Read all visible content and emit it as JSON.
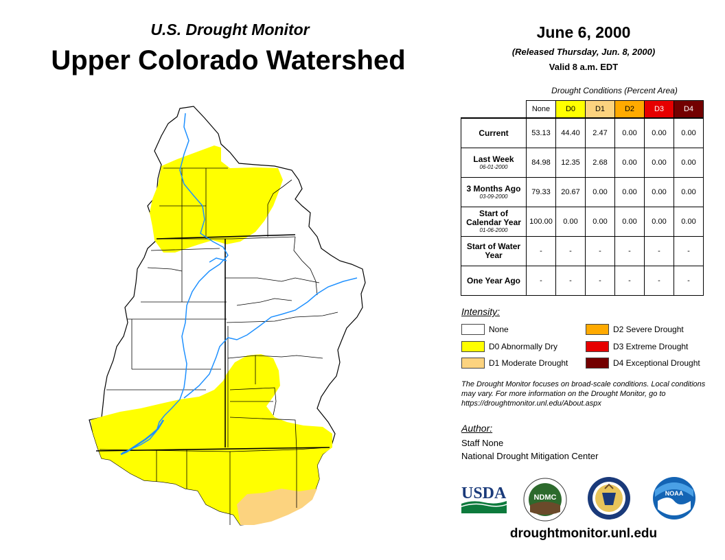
{
  "header": {
    "subtitle": "U.S. Drought Monitor",
    "title": "Upper Colorado Watershed",
    "date": "June 6, 2000",
    "released": "(Released Thursday, Jun. 8, 2000)",
    "valid": "Valid 8 a.m. EDT"
  },
  "table": {
    "caption": "Drought Conditions (Percent Area)",
    "columns": [
      "None",
      "D0",
      "D1",
      "D2",
      "D3",
      "D4"
    ],
    "column_colors": [
      "#ffffff",
      "#ffff00",
      "#fcd37f",
      "#ffaa00",
      "#e60000",
      "#730000"
    ],
    "rows": [
      {
        "label": "Current",
        "sub": "",
        "values": [
          "53.13",
          "44.40",
          "2.47",
          "0.00",
          "0.00",
          "0.00"
        ]
      },
      {
        "label": "Last Week",
        "sub": "06-01-2000",
        "values": [
          "84.98",
          "12.35",
          "2.68",
          "0.00",
          "0.00",
          "0.00"
        ]
      },
      {
        "label": "3 Months Ago",
        "sub": "03-09-2000",
        "values": [
          "79.33",
          "20.67",
          "0.00",
          "0.00",
          "0.00",
          "0.00"
        ]
      },
      {
        "label": "Start of Calendar Year",
        "sub": "01-06-2000",
        "values": [
          "100.00",
          "0.00",
          "0.00",
          "0.00",
          "0.00",
          "0.00"
        ]
      },
      {
        "label": "Start of Water Year",
        "sub": "",
        "values": [
          "-",
          "-",
          "-",
          "-",
          "-",
          "-"
        ]
      },
      {
        "label": "One Year Ago",
        "sub": "",
        "values": [
          "-",
          "-",
          "-",
          "-",
          "-",
          "-"
        ]
      }
    ]
  },
  "legend": {
    "title": "Intensity:",
    "items": [
      {
        "label": "None",
        "color": "#ffffff"
      },
      {
        "label": "D0 Abnormally Dry",
        "color": "#ffff00"
      },
      {
        "label": "D1 Moderate Drought",
        "color": "#fcd37f"
      },
      {
        "label": "D2 Severe Drought",
        "color": "#ffaa00"
      },
      {
        "label": "D3 Extreme Drought",
        "color": "#e60000"
      },
      {
        "label": "D4 Exceptional Drought",
        "color": "#730000"
      }
    ]
  },
  "note": "The Drought Monitor focuses on broad-scale conditions. Local conditions may vary. For more information on the Drought Monitor, go to https://droughtmonitor.unl.edu/About.aspx",
  "author": {
    "title": "Author:",
    "name": "Staff None",
    "org": "National Drought Mitigation Center"
  },
  "logos": {
    "usda": "USDA",
    "ndmc": "NDMC",
    "noaa": "NOAA"
  },
  "url": "droughtmonitor.unl.edu",
  "colors": {
    "river": "#1e90ff",
    "d0": "#ffff00",
    "d1": "#fcd37f"
  }
}
